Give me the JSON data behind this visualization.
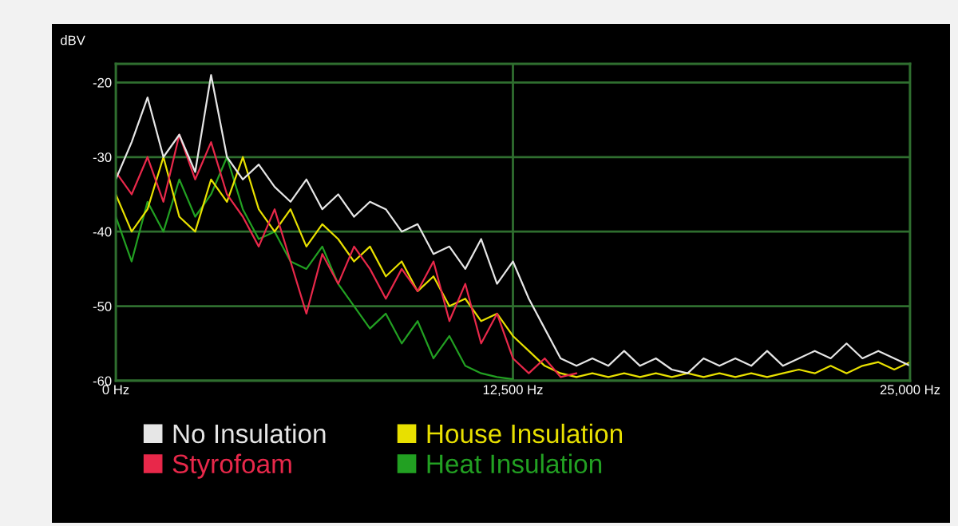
{
  "chart_data": {
    "type": "line",
    "ylabel": "dBV",
    "x": [
      0,
      500,
      1000,
      1500,
      2000,
      2500,
      3000,
      3500,
      4000,
      4500,
      5000,
      5500,
      6000,
      6500,
      7000,
      7500,
      8000,
      8500,
      9000,
      9500,
      10000,
      10500,
      11000,
      11500,
      12000,
      12500,
      13000,
      13500,
      14000,
      14500,
      15000,
      15500,
      16000,
      16500,
      17000,
      17500,
      18000,
      18500,
      19000,
      19500,
      20000,
      20500,
      21000,
      21500,
      22000,
      22500,
      23000,
      23500,
      24000,
      24500,
      25000
    ],
    "series": [
      {
        "name": "Heat Insulation",
        "color": "#22a022",
        "values": [
          -38,
          -44,
          -36,
          -40,
          -33,
          -38,
          -35,
          -30,
          -37,
          -41,
          -40,
          -44,
          -45,
          -42,
          -47,
          -50,
          -53,
          -51,
          -55,
          -52,
          -57,
          -54,
          -58,
          -59,
          -59.5,
          -59.8,
          null,
          null,
          null,
          null,
          null,
          null,
          null,
          null,
          null,
          null,
          null,
          null,
          null,
          null,
          null,
          null,
          null,
          null,
          null,
          null,
          null,
          null,
          null,
          null,
          null
        ]
      },
      {
        "name": "House Insulation",
        "color": "#e8e000",
        "values": [
          -35,
          -40,
          -37,
          -30,
          -38,
          -40,
          -33,
          -36,
          -30,
          -37,
          -40,
          -37,
          -42,
          -39,
          -41,
          -44,
          -42,
          -46,
          -44,
          -48,
          -46,
          -50,
          -49,
          -52,
          -51,
          -54,
          -56,
          -58,
          -59,
          -59.5,
          -59,
          -59.5,
          -59,
          -59.5,
          -59,
          -59.5,
          -59,
          -59.5,
          -59,
          -59.5,
          -59,
          -59.5,
          -59,
          -58.5,
          -59,
          -58,
          -59,
          -58,
          -57.5,
          -58.5,
          -57.5
        ]
      },
      {
        "name": "Styrofoam",
        "color": "#e8284a",
        "values": [
          -32,
          -35,
          -30,
          -36,
          -27,
          -33,
          -28,
          -35,
          -38,
          -42,
          -37,
          -44,
          -51,
          -43,
          -47,
          -42,
          -45,
          -49,
          -45,
          -48,
          -44,
          -52,
          -47,
          -55,
          -51,
          -57,
          -59,
          -57,
          -59.5,
          -59,
          null,
          null,
          null,
          null,
          null,
          null,
          null,
          null,
          null,
          null,
          null,
          null,
          null,
          null,
          null,
          null,
          null,
          null,
          null,
          null,
          null
        ]
      },
      {
        "name": "No Insulation",
        "color": "#e6e6e6",
        "values": [
          -33,
          -28,
          -22,
          -30,
          -27,
          -32,
          -19,
          -30,
          -33,
          -31,
          -34,
          -36,
          -33,
          -37,
          -35,
          -38,
          -36,
          -37,
          -40,
          -39,
          -43,
          -42,
          -45,
          -41,
          -47,
          -44,
          -49,
          -53,
          -57,
          -58,
          -57,
          -58,
          -56,
          -58,
          -57,
          -58.5,
          -59,
          -57,
          -58,
          -57,
          -58,
          -56,
          -58,
          -57,
          -56,
          -57,
          -55,
          -57,
          -56,
          -57,
          -58
        ]
      }
    ],
    "xlim": [
      0,
      25000
    ],
    "ylim": [
      -60,
      -17.5
    ],
    "xticks": [
      {
        "value": 0,
        "label": "0 Hz"
      },
      {
        "value": 12500,
        "label": "12,500 Hz"
      },
      {
        "value": 25000,
        "label": "25,000 Hz"
      }
    ],
    "yticks": [
      -20,
      -30,
      -40,
      -50,
      -60
    ],
    "grid": true,
    "legend": "bottom"
  }
}
